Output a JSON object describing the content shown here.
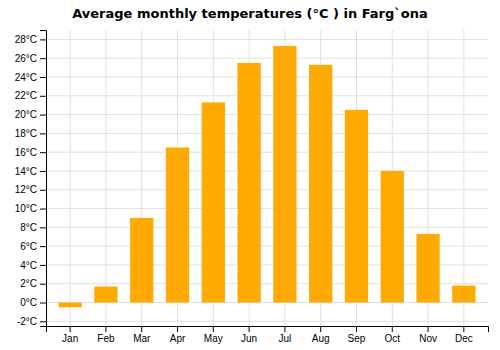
{
  "chart_data": {
    "type": "bar",
    "title": "Average monthly temperatures (°C ) in Farg`ona",
    "categories": [
      "Jan",
      "Feb",
      "Mar",
      "Apr",
      "May",
      "Jun",
      "Jul",
      "Aug",
      "Sep",
      "Oct",
      "Nov",
      "Dec"
    ],
    "values": [
      -0.5,
      1.7,
      9.0,
      16.5,
      21.3,
      25.5,
      27.3,
      25.3,
      20.5,
      14.0,
      7.3,
      1.8
    ],
    "color": "#FFAA00",
    "ylim": [
      -2.5,
      29
    ],
    "yticks": [
      {
        "value": -2,
        "label": "-2°C"
      },
      {
        "value": 0,
        "label": "0°C"
      },
      {
        "value": 2,
        "label": "2°C"
      },
      {
        "value": 4,
        "label": "4°C"
      },
      {
        "value": 6,
        "label": "6°C"
      },
      {
        "value": 8,
        "label": "8°C"
      },
      {
        "value": 10,
        "label": "10°C"
      },
      {
        "value": 12,
        "label": "12°C"
      },
      {
        "value": 14,
        "label": "14°C"
      },
      {
        "value": 16,
        "label": "16°C"
      },
      {
        "value": 18,
        "label": "18°C"
      },
      {
        "value": 20,
        "label": "20°C"
      },
      {
        "value": 22,
        "label": "22°C"
      },
      {
        "value": 24,
        "label": "24°C"
      },
      {
        "value": 26,
        "label": "26°C"
      },
      {
        "value": 28,
        "label": "28°C"
      }
    ],
    "grid": true
  }
}
